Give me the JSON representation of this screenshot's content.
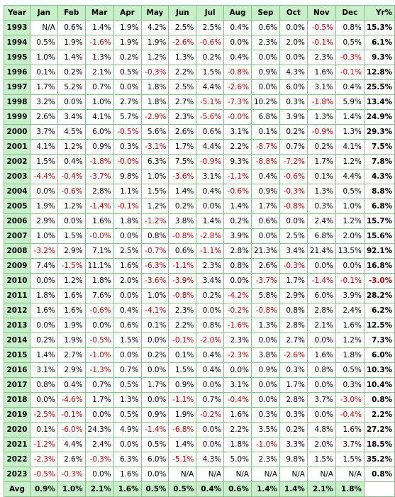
{
  "colors": {
    "header_bg": "#c8f0c8",
    "border": "#8fbc8f",
    "negative_text": "#c00000"
  },
  "header": [
    "Year",
    "Jan",
    "Feb",
    "Mar",
    "Apr",
    "May",
    "Jun",
    "Jul",
    "Aug",
    "Sep",
    "Oct",
    "Nov",
    "Dec",
    "Yr%"
  ],
  "rows": [
    {
      "year": "1993",
      "values": [
        "N/A",
        "0.6%",
        "1.4%",
        "1.9%",
        "4.2%",
        "2.5%",
        "2.5%",
        "0.4%",
        "0.6%",
        "0.0%",
        "-0.5%",
        "0.8%"
      ],
      "total": "15.3%"
    },
    {
      "year": "1994",
      "values": [
        "0.5%",
        "1.9%",
        "-1.6%",
        "1.9%",
        "1.9%",
        "-2.6%",
        "-0.6%",
        "0.0%",
        "2.3%",
        "2.0%",
        "-0.1%",
        "0.5%"
      ],
      "total": "6.1%"
    },
    {
      "year": "1995",
      "values": [
        "1.0%",
        "1.4%",
        "1.3%",
        "0.2%",
        "1.2%",
        "1.3%",
        "0.2%",
        "0.4%",
        "0.0%",
        "0.0%",
        "2.3%",
        "-0.3%"
      ],
      "total": "9.3%"
    },
    {
      "year": "1996",
      "values": [
        "0.1%",
        "0.2%",
        "2.1%",
        "0.5%",
        "-0.3%",
        "2.2%",
        "1.5%",
        "-0.8%",
        "0.9%",
        "4.3%",
        "1.6%",
        "-0.1%"
      ],
      "total": "12.8%"
    },
    {
      "year": "1997",
      "values": [
        "1.7%",
        "5.2%",
        "0.7%",
        "0.0%",
        "1.8%",
        "2.5%",
        "4.4%",
        "-2.6%",
        "0.0%",
        "6.0%",
        "3.1%",
        "0.4%"
      ],
      "total": "25.5%"
    },
    {
      "year": "1998",
      "values": [
        "3.2%",
        "0.0%",
        "1.0%",
        "2.7%",
        "1.8%",
        "2.7%",
        "-5.1%",
        "-7.3%",
        "10.2%",
        "0.3%",
        "-1.8%",
        "5.9%"
      ],
      "total": "13.4%"
    },
    {
      "year": "1999",
      "values": [
        "2.6%",
        "3.4%",
        "4.1%",
        "5.7%",
        "-2.9%",
        "2.3%",
        "-5.6%",
        "-0.0%",
        "6.8%",
        "3.9%",
        "1.3%",
        "1.4%"
      ],
      "total": "24.9%"
    },
    {
      "year": "2000",
      "values": [
        "3.7%",
        "4.5%",
        "6.0%",
        "-0.5%",
        "5.6%",
        "2.6%",
        "0.6%",
        "3.1%",
        "0.1%",
        "0.2%",
        "-0.9%",
        "1.3%"
      ],
      "total": "29.3%"
    },
    {
      "year": "2001",
      "values": [
        "4.1%",
        "1.2%",
        "0.9%",
        "0.3%",
        "-3.1%",
        "1.7%",
        "4.4%",
        "2.2%",
        "-8.7%",
        "0.7%",
        "0.2%",
        "4.1%"
      ],
      "total": "7.5%"
    },
    {
      "year": "2002",
      "values": [
        "1.5%",
        "0.4%",
        "-1.8%",
        "-0.0%",
        "6.3%",
        "7.5%",
        "-0.9%",
        "9.3%",
        "-8.8%",
        "-7.2%",
        "1.7%",
        "1.2%"
      ],
      "total": "7.8%"
    },
    {
      "year": "2003",
      "values": [
        "-4.4%",
        "-0.4%",
        "-3.7%",
        "9.8%",
        "1.0%",
        "-3.6%",
        "3.1%",
        "-1.1%",
        "0.4%",
        "-0.6%",
        "0.1%",
        "4.4%"
      ],
      "total": "4.3%"
    },
    {
      "year": "2004",
      "values": [
        "0.0%",
        "-0.6%",
        "2.8%",
        "1.1%",
        "1.5%",
        "1.4%",
        "0.4%",
        "-0.6%",
        "0.9%",
        "-0.3%",
        "1.3%",
        "0.5%"
      ],
      "total": "8.8%"
    },
    {
      "year": "2005",
      "values": [
        "1.9%",
        "1.2%",
        "-1.4%",
        "-0.1%",
        "1.2%",
        "0.2%",
        "0.0%",
        "1.4%",
        "1.7%",
        "-0.8%",
        "0.3%",
        "1.0%"
      ],
      "total": "6.8%"
    },
    {
      "year": "2006",
      "values": [
        "2.9%",
        "0.0%",
        "1.6%",
        "1.8%",
        "-1.2%",
        "3.8%",
        "1.4%",
        "0.2%",
        "0.6%",
        "0.0%",
        "2.4%",
        "1.2%"
      ],
      "total": "15.7%"
    },
    {
      "year": "2007",
      "values": [
        "1.0%",
        "1.5%",
        "-0.0%",
        "0.0%",
        "0.8%",
        "-0.8%",
        "-2.8%",
        "3.9%",
        "0.0%",
        "2.5%",
        "6.8%",
        "2.0%"
      ],
      "total": "15.6%"
    },
    {
      "year": "2008",
      "values": [
        "-3.2%",
        "2.9%",
        "7.1%",
        "2.5%",
        "-0.7%",
        "0.6%",
        "-1.1%",
        "2.8%",
        "21.3%",
        "3.4%",
        "21.4%",
        "13.5%"
      ],
      "total": "92.1%"
    },
    {
      "year": "2009",
      "values": [
        "7.4%",
        "-1.5%",
        "11.1%",
        "1.6%",
        "-6.3%",
        "-1.1%",
        "2.3%",
        "0.8%",
        "2.6%",
        "-0.3%",
        "0.0%",
        "0.0%"
      ],
      "total": "16.8%"
    },
    {
      "year": "2010",
      "values": [
        "0.0%",
        "1.2%",
        "1.8%",
        "2.0%",
        "-3.6%",
        "-3.9%",
        "3.4%",
        "0.0%",
        "-3.7%",
        "1.7%",
        "-1.4%",
        "-0.1%"
      ],
      "total": "-3.0%"
    },
    {
      "year": "2011",
      "values": [
        "1.8%",
        "1.6%",
        "7.6%",
        "0.0%",
        "1.0%",
        "-0.8%",
        "0.2%",
        "-4.2%",
        "5.8%",
        "2.9%",
        "6.0%",
        "3.9%"
      ],
      "total": "28.2%"
    },
    {
      "year": "2012",
      "values": [
        "1.6%",
        "1.6%",
        "-0.6%",
        "0.4%",
        "-4.1%",
        "2.3%",
        "0.0%",
        "-0.2%",
        "-0.8%",
        "0.8%",
        "2.8%",
        "2.4%"
      ],
      "total": "6.2%"
    },
    {
      "year": "2013",
      "values": [
        "0.0%",
        "1.9%",
        "0.0%",
        "0.6%",
        "0.1%",
        "2.2%",
        "0.8%",
        "-1.6%",
        "1.3%",
        "2.8%",
        "2.1%",
        "1.6%"
      ],
      "total": "12.5%"
    },
    {
      "year": "2014",
      "values": [
        "0.2%",
        "1.9%",
        "-0.5%",
        "1.5%",
        "0.0%",
        "-0.1%",
        "-2.0%",
        "2.3%",
        "0.0%",
        "2.7%",
        "0.0%",
        "1.2%"
      ],
      "total": "7.3%"
    },
    {
      "year": "2015",
      "values": [
        "1.4%",
        "2.7%",
        "-1.0%",
        "0.0%",
        "0.2%",
        "0.1%",
        "0.4%",
        "-2.3%",
        "3.8%",
        "-2.6%",
        "1.6%",
        "1.8%"
      ],
      "total": "6.0%"
    },
    {
      "year": "2016",
      "values": [
        "3.1%",
        "2.9%",
        "-1.3%",
        "0.7%",
        "0.0%",
        "1.5%",
        "0.4%",
        "0.0%",
        "0.9%",
        "0.3%",
        "0.8%",
        "0.5%"
      ],
      "total": "10.3%"
    },
    {
      "year": "2017",
      "values": [
        "0.8%",
        "0.4%",
        "0.7%",
        "0.5%",
        "1.7%",
        "0.9%",
        "0.0%",
        "3.1%",
        "0.0%",
        "1.7%",
        "0.0%",
        "0.3%"
      ],
      "total": "10.4%"
    },
    {
      "year": "2018",
      "values": [
        "0.0%",
        "-4.6%",
        "1.7%",
        "1.3%",
        "0.0%",
        "-1.1%",
        "0.7%",
        "-0.4%",
        "0.0%",
        "2.8%",
        "3.7%",
        "-3.0%"
      ],
      "total": "0.8%"
    },
    {
      "year": "2019",
      "values": [
        "-2.5%",
        "-0.1%",
        "0.0%",
        "0.5%",
        "0.9%",
        "1.9%",
        "-0.2%",
        "1.6%",
        "0.3%",
        "0.3%",
        "0.0%",
        "-0.4%"
      ],
      "total": "2.2%"
    },
    {
      "year": "2020",
      "values": [
        "0.1%",
        "-6.0%",
        "24.3%",
        "4.9%",
        "-1.4%",
        "-6.8%",
        "0.0%",
        "2.2%",
        "3.5%",
        "0.2%",
        "4.8%",
        "1.6%"
      ],
      "total": "27.2%"
    },
    {
      "year": "2021",
      "values": [
        "-1.2%",
        "4.4%",
        "2.4%",
        "0.0%",
        "0.5%",
        "1.4%",
        "0.0%",
        "1.8%",
        "-1.0%",
        "3.3%",
        "2.0%",
        "3.7%"
      ],
      "total": "18.5%"
    },
    {
      "year": "2022",
      "values": [
        "-2.3%",
        "2.6%",
        "-0.3%",
        "6.3%",
        "6.0%",
        "-5.1%",
        "4.3%",
        "5.0%",
        "2.3%",
        "9.8%",
        "1.5%",
        "1.5%"
      ],
      "total": "35.2%"
    },
    {
      "year": "2023",
      "values": [
        "-0.5%",
        "-0.3%",
        "0.0%",
        "1.6%",
        "0.0%",
        "N/A",
        "N/A",
        "N/A",
        "N/A",
        "N/A",
        "N/A",
        "N/A"
      ],
      "total": "0.8%"
    }
  ],
  "footer": {
    "label": "Avg",
    "values": [
      "0.9%",
      "1.0%",
      "2.1%",
      "1.6%",
      "0.5%",
      "0.5%",
      "0.4%",
      "0.6%",
      "1.4%",
      "1.4%",
      "2.1%",
      "1.8%"
    ],
    "total": ""
  }
}
